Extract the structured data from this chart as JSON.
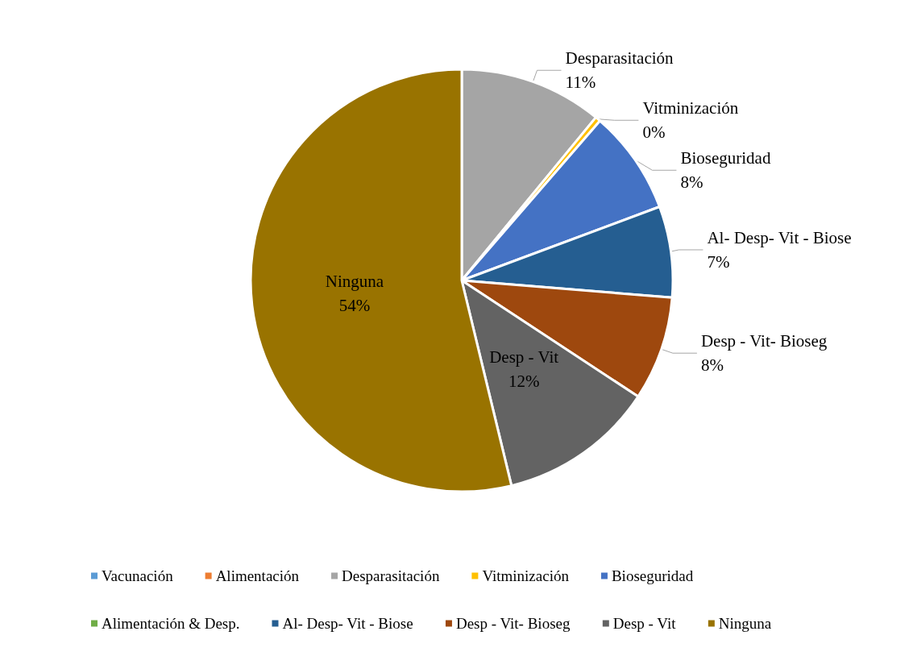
{
  "chart_data": {
    "type": "pie",
    "categories": [
      "Vacunación",
      "Alimentación",
      "Desparasitación",
      "Vitminización",
      "Bioseguridad",
      "Alimentación & Desp.",
      "Al- Desp- Vit - Biose",
      "Desp - Vit- Bioseg",
      "Desp - Vit",
      "Ninguna"
    ],
    "values": [
      0,
      0,
      11,
      0.4,
      8,
      0,
      7,
      8,
      12,
      54
    ],
    "value_labels": [
      null,
      null,
      "11%",
      "0%",
      "8%",
      null,
      "7%",
      "8%",
      "12%",
      "54%"
    ],
    "colors": [
      "#5b9bd5",
      "#ed7d31",
      "#a5a5a5",
      "#ffc000",
      "#4472c4",
      "#70ad47",
      "#255e91",
      "#9e480e",
      "#636363",
      "#997300"
    ],
    "legend": "bottom"
  }
}
